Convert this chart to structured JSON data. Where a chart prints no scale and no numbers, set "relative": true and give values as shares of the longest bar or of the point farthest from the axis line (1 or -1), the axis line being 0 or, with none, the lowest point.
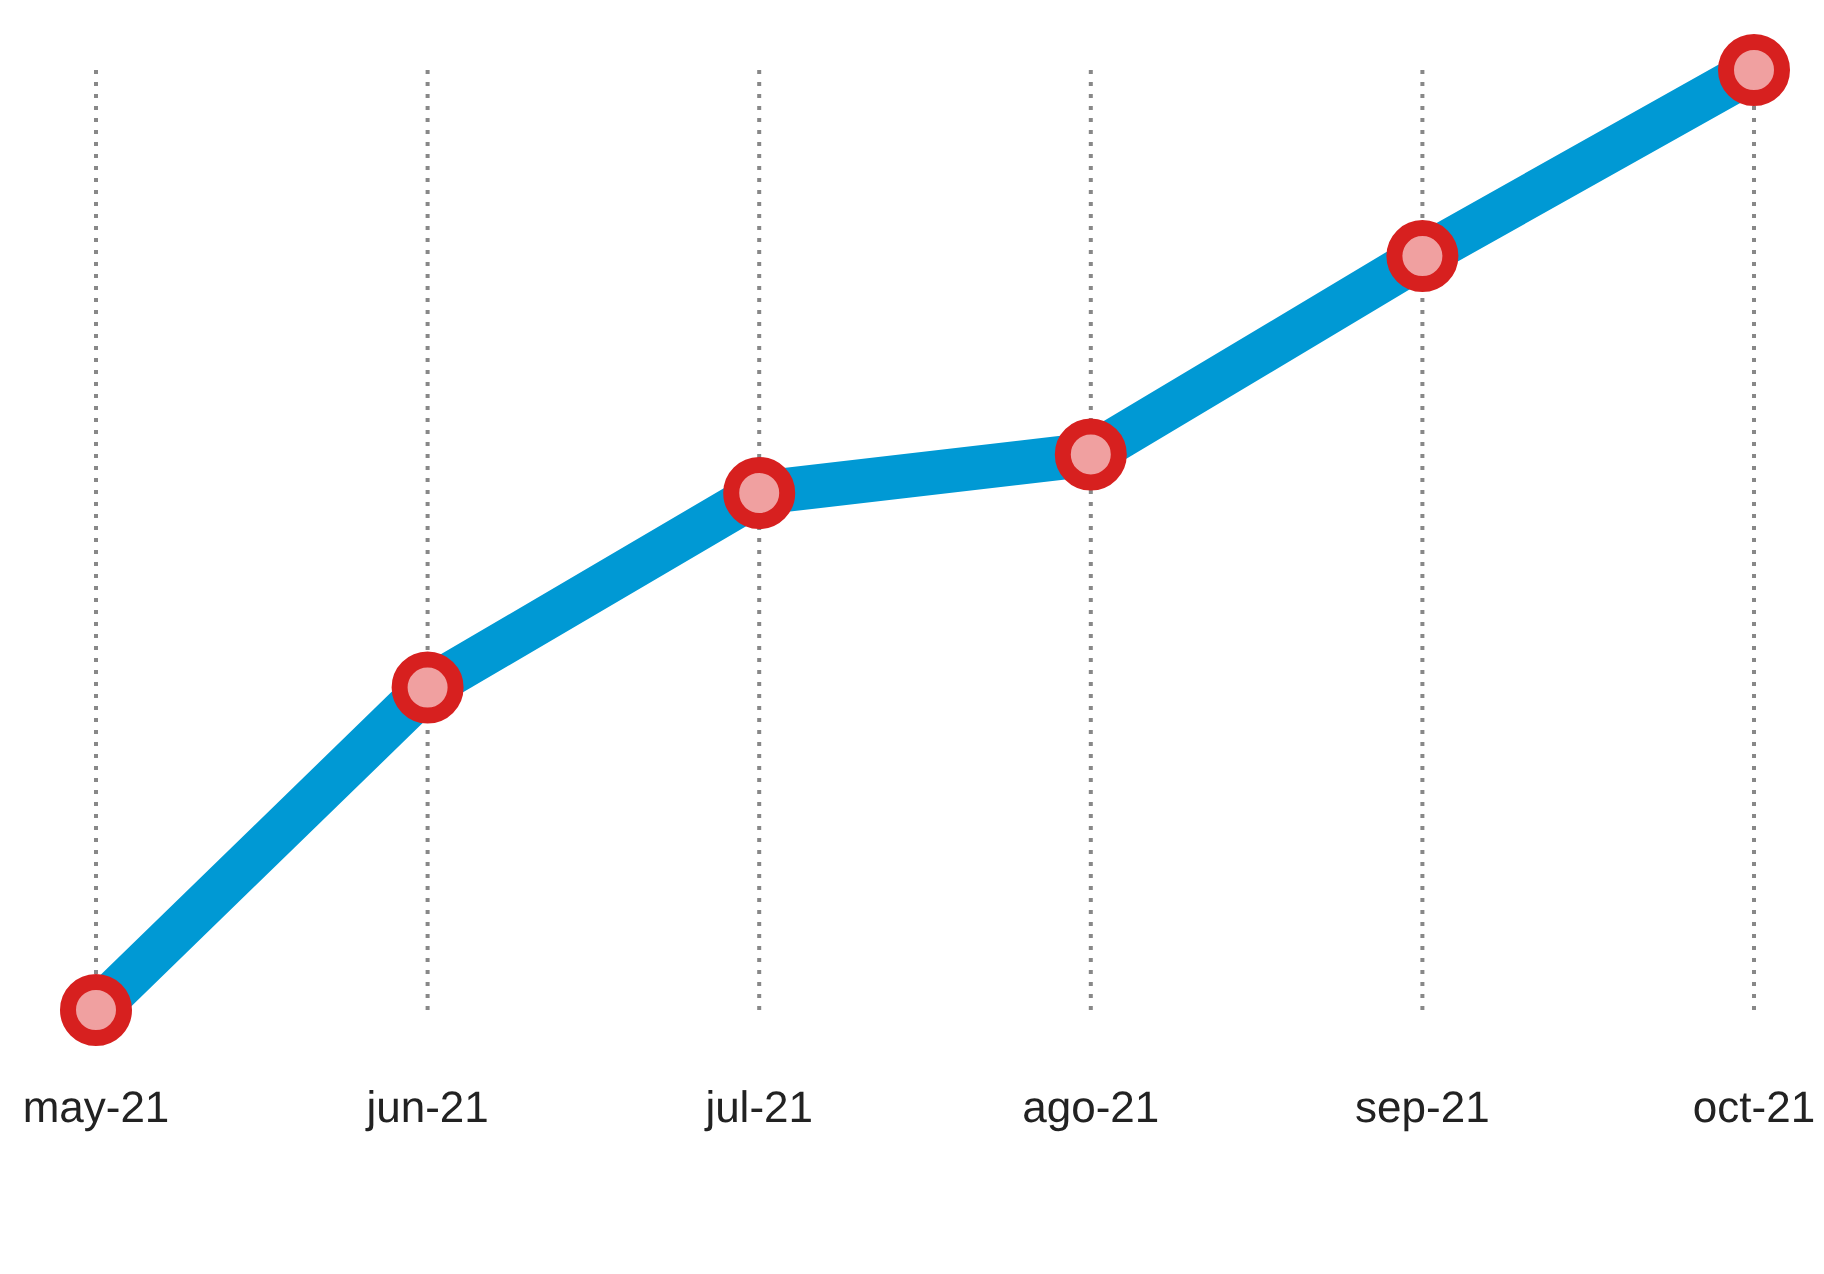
{
  "chart_data": {
    "type": "line",
    "categories": [
      "may-21",
      "jun-21",
      "jul-21",
      "ago-21",
      "sep-21",
      "oct-21"
    ],
    "relative": true,
    "series": [
      {
        "color": "#0099d4",
        "values": [
          0,
          0.343,
          0.55,
          0.591,
          0.802,
          1
        ]
      }
    ],
    "marker": "circle",
    "line_style": "solid",
    "grid": "x"
  }
}
